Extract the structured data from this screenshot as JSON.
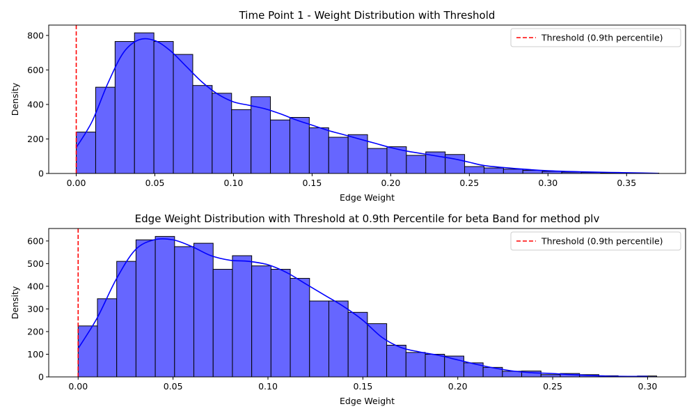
{
  "chart_data": [
    {
      "type": "bar",
      "title": "Time Point 1 - Weight Distribution with Threshold",
      "xlabel": "Edge Weight",
      "ylabel": "Density",
      "xlim": [
        -0.0175,
        0.3875
      ],
      "ylim": [
        0,
        860
      ],
      "xticks": [
        0.0,
        0.05,
        0.1,
        0.15,
        0.2,
        0.25,
        0.3,
        0.35
      ],
      "xtick_labels": [
        "0.00",
        "0.05",
        "0.10",
        "0.15",
        "0.20",
        "0.25",
        "0.30",
        "0.35"
      ],
      "yticks": [
        0,
        200,
        400,
        600,
        800
      ],
      "ytick_labels": [
        "0",
        "200",
        "400",
        "600",
        "800"
      ],
      "bin_start": 0.0,
      "bin_width": 0.01235,
      "values": [
        240,
        500,
        765,
        815,
        765,
        690,
        510,
        465,
        370,
        445,
        310,
        325,
        265,
        210,
        225,
        145,
        155,
        105,
        125,
        110,
        40,
        32,
        25,
        18,
        12,
        8,
        6,
        4,
        3,
        2
      ],
      "kde_x": [
        0.0,
        0.01,
        0.02,
        0.03,
        0.04,
        0.05,
        0.06,
        0.07,
        0.08,
        0.09,
        0.1,
        0.11,
        0.12,
        0.13,
        0.14,
        0.15,
        0.16,
        0.17,
        0.18,
        0.19,
        0.2,
        0.21,
        0.22,
        0.23,
        0.24,
        0.25,
        0.26,
        0.28,
        0.3,
        0.32,
        0.34,
        0.36,
        0.37
      ],
      "kde_y": [
        150,
        300,
        520,
        700,
        775,
        770,
        710,
        620,
        530,
        460,
        415,
        395,
        375,
        345,
        310,
        280,
        250,
        225,
        200,
        175,
        150,
        130,
        115,
        100,
        85,
        65,
        45,
        28,
        16,
        10,
        6,
        3,
        1
      ],
      "threshold": 0.0,
      "legend": [
        "Threshold (0.9th percentile)"
      ],
      "legend_position": "top-right",
      "bar_color": "#6666ff",
      "kde_color": "#0000ff",
      "threshold_color": "#ff0000"
    },
    {
      "type": "bar",
      "title": "Edge Weight Distribution with Threshold at 0.9th Percentile for beta Band for method plv",
      "xlabel": "Edge Weight",
      "ylabel": "Density",
      "xlim": [
        -0.0155,
        0.32
      ],
      "ylim": [
        0,
        655
      ],
      "xticks": [
        0.0,
        0.05,
        0.1,
        0.15,
        0.2,
        0.25,
        0.3
      ],
      "xtick_labels": [
        "0.00",
        "0.05",
        "0.10",
        "0.15",
        "0.20",
        "0.25",
        "0.30"
      ],
      "yticks": [
        0,
        100,
        200,
        300,
        400,
        500,
        600
      ],
      "ytick_labels": [
        "0",
        "100",
        "200",
        "300",
        "400",
        "500",
        "600"
      ],
      "bin_start": 0.0,
      "bin_width": 0.01016,
      "values": [
        225,
        345,
        510,
        605,
        620,
        575,
        590,
        475,
        535,
        490,
        475,
        435,
        335,
        335,
        285,
        235,
        140,
        108,
        100,
        92,
        62,
        42,
        25,
        26,
        10,
        15,
        10,
        5,
        3,
        4
      ],
      "kde_x": [
        0.0,
        0.01,
        0.02,
        0.03,
        0.04,
        0.05,
        0.06,
        0.07,
        0.08,
        0.09,
        0.1,
        0.11,
        0.12,
        0.13,
        0.14,
        0.15,
        0.16,
        0.17,
        0.18,
        0.19,
        0.2,
        0.21,
        0.22,
        0.23,
        0.24,
        0.25,
        0.26,
        0.28,
        0.3
      ],
      "kde_y": [
        125,
        260,
        430,
        560,
        605,
        605,
        575,
        535,
        515,
        510,
        495,
        460,
        410,
        360,
        310,
        250,
        175,
        130,
        110,
        95,
        75,
        55,
        38,
        25,
        18,
        15,
        10,
        3,
        2
      ],
      "threshold": 0.0,
      "legend": [
        "Threshold (0.9th percentile)"
      ],
      "legend_position": "top-right",
      "bar_color": "#6666ff",
      "kde_color": "#0000ff",
      "threshold_color": "#ff0000"
    }
  ]
}
